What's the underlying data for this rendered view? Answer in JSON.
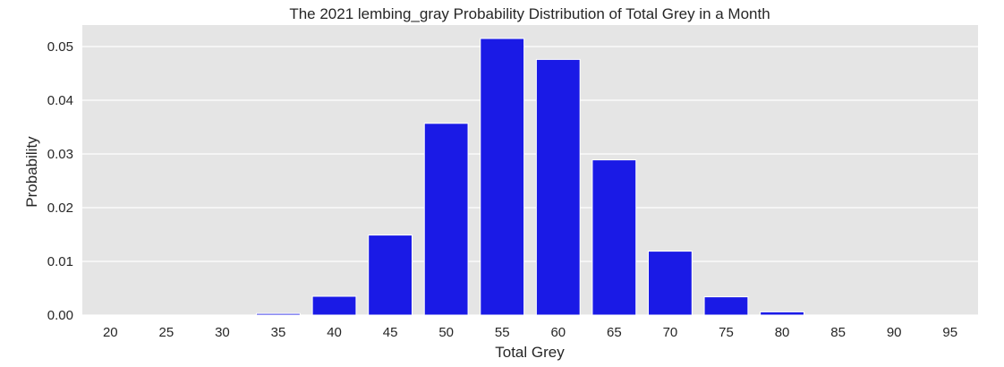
{
  "chart_data": {
    "type": "bar",
    "title": "The 2021 lembing_gray Probability Distribution of Total Grey in a Month",
    "xlabel": "Total Grey",
    "ylabel": "Probability",
    "categories": [
      "20",
      "25",
      "30",
      "35",
      "40",
      "45",
      "50",
      "55",
      "60",
      "65",
      "70",
      "75",
      "80",
      "85",
      "90",
      "95"
    ],
    "values": [
      0.0,
      0.0,
      0.0,
      0.0003,
      0.0035,
      0.0149,
      0.0357,
      0.0515,
      0.0476,
      0.0289,
      0.0119,
      0.0034,
      0.0006,
      0.0,
      0.0,
      0.0
    ],
    "ylim": [
      0,
      0.054
    ],
    "yticks": [
      "0.00",
      "0.01",
      "0.02",
      "0.03",
      "0.04",
      "0.05"
    ],
    "grid": true,
    "colors": {
      "bar": "#1a1ae6",
      "background": "#e5e5e5",
      "grid": "#ffffff"
    }
  }
}
